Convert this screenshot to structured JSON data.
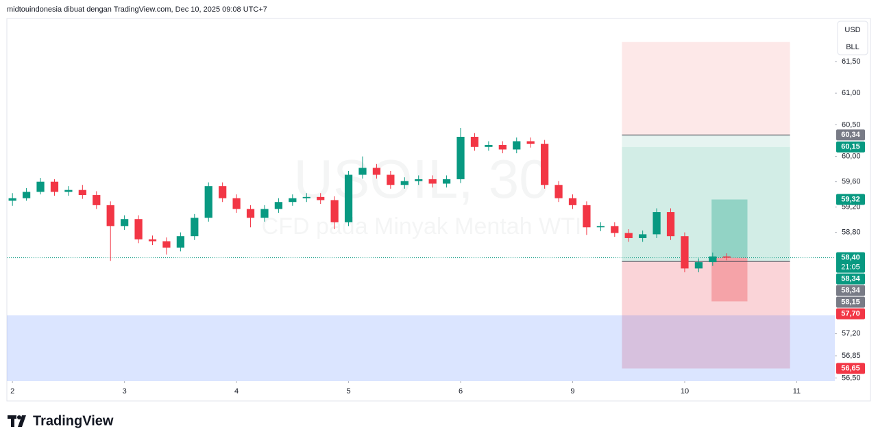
{
  "header": "midtouindonesia dibuat dengan TradingView.com, Dec 10, 2025 09:08 UTC+7",
  "chart_data": {
    "type": "candlestick",
    "watermark_symbol": "USOIL, 30",
    "watermark_name": "CFD pada Minyak Mentah WTI",
    "currency": "USD",
    "unit": "BLL",
    "up_color": "#089981",
    "down_color": "#f23645",
    "x": [
      0,
      0.125,
      0.25,
      0.375,
      0.5,
      0.625,
      0.75,
      0.875,
      1,
      1.125,
      1.25,
      1.375,
      1.5,
      1.625,
      1.75,
      1.875,
      2,
      2.125,
      2.25,
      2.375,
      2.5,
      2.625,
      2.75,
      2.875,
      3,
      3.125,
      3.25,
      3.375,
      3.5,
      3.625,
      3.75,
      3.875,
      4,
      4.125,
      4.25,
      4.375,
      4.5,
      4.625,
      4.75,
      4.875,
      5,
      5.125,
      5.25,
      5.375,
      5.5,
      5.625,
      5.75,
      5.875,
      6,
      6.125,
      6.25,
      6.375
    ],
    "open": [
      59.3,
      59.34,
      59.44,
      59.6,
      59.44,
      59.47,
      59.39,
      59.23,
      58.9,
      59.01,
      58.69,
      58.66,
      58.56,
      58.74,
      59.03,
      59.53,
      59.34,
      59.17,
      59.03,
      59.17,
      59.28,
      59.34,
      59.36,
      59.31,
      58.96,
      59.71,
      59.82,
      59.71,
      59.55,
      59.61,
      59.64,
      59.57,
      59.64,
      60.31,
      60.15,
      60.18,
      60.11,
      60.24,
      60.2,
      59.55,
      59.34,
      59.23,
      58.88,
      58.9,
      58.79,
      58.71,
      58.77,
      59.12,
      58.74,
      58.23,
      58.33,
      58.42
    ],
    "high": [
      59.42,
      59.5,
      59.66,
      59.64,
      59.53,
      59.55,
      59.45,
      59.29,
      59.07,
      59.07,
      58.75,
      58.72,
      58.8,
      59.09,
      59.59,
      59.59,
      59.4,
      59.23,
      59.23,
      59.34,
      59.4,
      59.42,
      59.42,
      59.37,
      59.77,
      60.0,
      59.88,
      59.77,
      59.67,
      59.7,
      59.7,
      59.7,
      60.45,
      60.37,
      60.24,
      60.24,
      60.3,
      60.3,
      60.26,
      59.61,
      59.4,
      59.29,
      58.96,
      58.96,
      58.85,
      58.83,
      59.18,
      59.18,
      58.8,
      58.39,
      58.48,
      58.47
    ],
    "low": [
      59.22,
      59.3,
      59.4,
      59.38,
      59.38,
      59.33,
      59.17,
      58.35,
      58.84,
      58.63,
      58.6,
      58.45,
      58.5,
      58.68,
      58.97,
      59.28,
      59.11,
      58.88,
      58.97,
      59.11,
      59.22,
      59.28,
      59.25,
      58.85,
      58.9,
      59.65,
      59.65,
      59.49,
      59.49,
      59.55,
      59.51,
      59.51,
      59.58,
      60.09,
      60.09,
      60.05,
      60.05,
      60.14,
      59.49,
      59.28,
      59.17,
      58.76,
      58.82,
      58.73,
      58.65,
      58.65,
      58.71,
      58.68,
      58.17,
      58.17,
      58.27,
      58.36
    ],
    "close": [
      59.34,
      59.44,
      59.6,
      59.44,
      59.47,
      59.39,
      59.23,
      58.9,
      59.01,
      58.69,
      58.66,
      58.56,
      58.74,
      59.03,
      59.53,
      59.34,
      59.17,
      59.03,
      59.17,
      59.28,
      59.34,
      59.36,
      59.31,
      58.96,
      59.71,
      59.82,
      59.71,
      59.55,
      59.61,
      59.64,
      59.57,
      59.64,
      60.31,
      60.15,
      60.18,
      60.11,
      60.24,
      60.2,
      59.55,
      59.34,
      59.23,
      58.88,
      58.9,
      58.79,
      58.71,
      58.77,
      59.12,
      58.74,
      58.23,
      58.33,
      58.42,
      58.4
    ],
    "xlim": [
      -0.05,
      7.34
    ],
    "xticks": [
      {
        "value": 0,
        "label": "2"
      },
      {
        "value": 1,
        "label": "3"
      },
      {
        "value": 2,
        "label": "4"
      },
      {
        "value": 3,
        "label": "5"
      },
      {
        "value": 4,
        "label": "6"
      },
      {
        "value": 5,
        "label": "9"
      },
      {
        "value": 6,
        "label": "10"
      },
      {
        "value": 7,
        "label": "11"
      }
    ],
    "ylim": [
      56.45,
      62.18
    ],
    "yticks": [
      {
        "value": 61.5,
        "label": "61,50"
      },
      {
        "value": 61,
        "label": "61,00"
      },
      {
        "value": 60.5,
        "label": "60,50"
      },
      {
        "value": 60,
        "label": "60,00"
      },
      {
        "value": 59.6,
        "label": "59,60"
      },
      {
        "value": 59.2,
        "label": "59,20"
      },
      {
        "value": 58.8,
        "label": "58,80"
      },
      {
        "value": 57.2,
        "label": "57,20"
      },
      {
        "value": 56.85,
        "label": "56,85"
      },
      {
        "value": 56.5,
        "label": "56,50"
      }
    ],
    "zones": [
      {
        "x": [
          5.44,
          6.94
        ],
        "y": [
          61.81,
          60.34
        ],
        "color": "#fde8e8"
      },
      {
        "x": [
          5.44,
          6.94
        ],
        "y": [
          60.34,
          60.15
        ],
        "color": "#e6f4f1"
      },
      {
        "x": [
          5.44,
          6.94
        ],
        "y": [
          60.15,
          58.34
        ],
        "color": "#d2ede6"
      },
      {
        "x": [
          5.44,
          6.94
        ],
        "y": [
          58.34,
          56.65
        ],
        "color": "#fad4d8"
      },
      {
        "x": [
          6.24,
          6.56
        ],
        "y": [
          59.32,
          58.4
        ],
        "color": "#92d3c5"
      },
      {
        "x": [
          6.24,
          6.56
        ],
        "y": [
          58.4,
          57.71
        ],
        "color": "#f5a3a8"
      },
      {
        "x": [
          -0.05,
          7.34
        ],
        "y": [
          57.49,
          56.45
        ],
        "color": "rgba(41,98,255,0.17)"
      }
    ],
    "level_lines": [
      {
        "x": [
          5.44,
          6.94
        ],
        "value": 60.34
      },
      {
        "x": [
          5.44,
          6.94
        ],
        "value": 58.34
      }
    ],
    "last_price": 58.4,
    "countdown": "21:05",
    "price_tags": [
      {
        "value": 60.34,
        "label": "60,34",
        "color": "#787b86"
      },
      {
        "value": 60.15,
        "label": "60,15",
        "color": "#089981"
      },
      {
        "value": 59.32,
        "label": "59,32",
        "color": "#089981"
      },
      {
        "value": 58.4,
        "label": "58,40",
        "color": "#089981"
      },
      {
        "value": 58.34,
        "label": "58,34",
        "color": "#089981"
      },
      {
        "value": 58.34,
        "label": "58,34",
        "color": "#787b86"
      },
      {
        "value": 58.15,
        "label": "58,15",
        "color": "#787b86"
      },
      {
        "value": 57.7,
        "label": "57,70",
        "color": "#f23645"
      },
      {
        "value": 56.65,
        "label": "56,65",
        "color": "#f23645"
      }
    ]
  },
  "footer": "TradingView"
}
